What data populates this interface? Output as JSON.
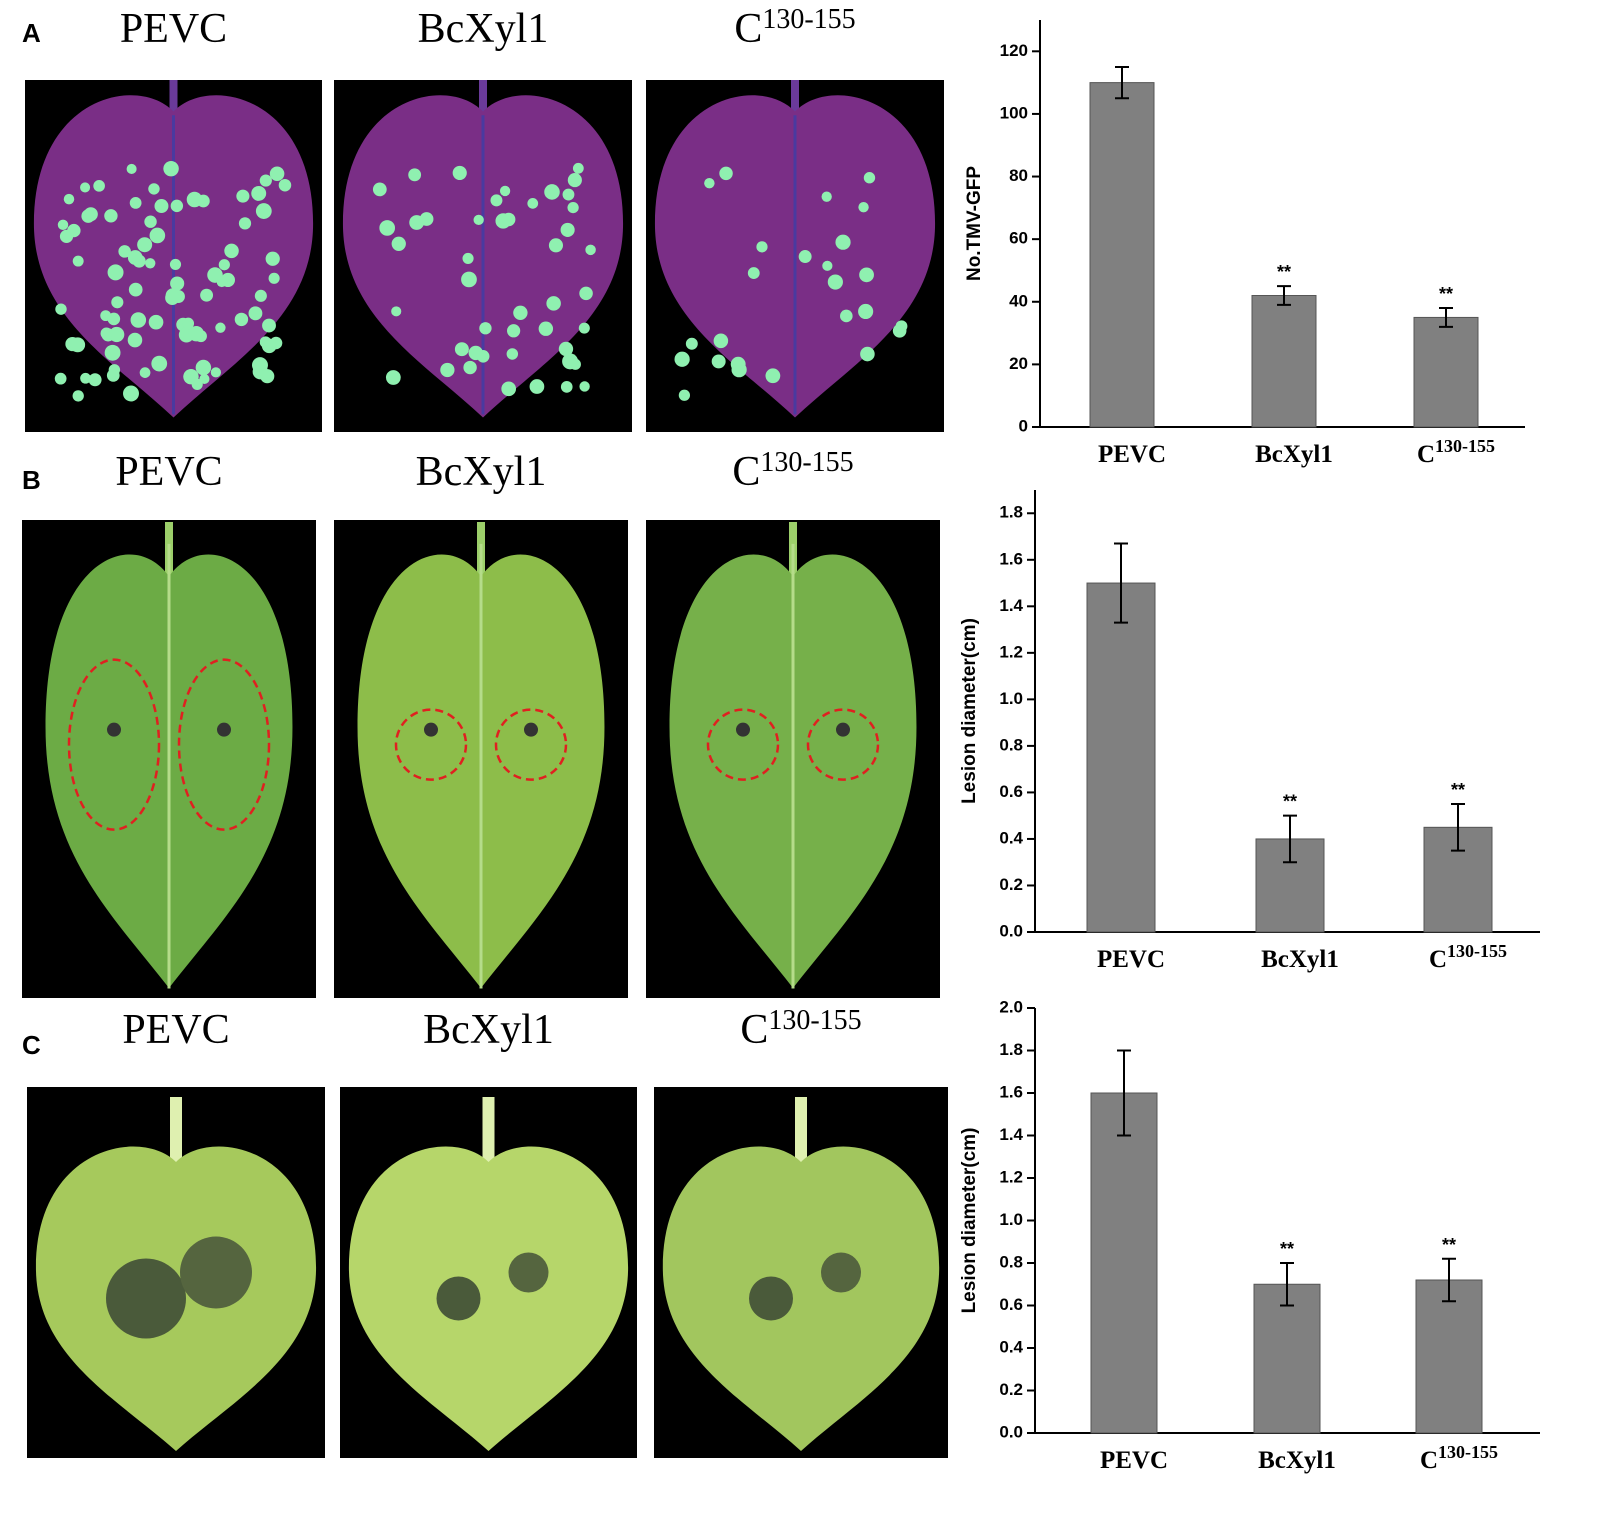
{
  "panels": [
    {
      "label": "A",
      "titles": [
        {
          "text": "PEVC"
        },
        {
          "text": "BcXyl1"
        },
        {
          "text": "C",
          "sup": "130-155"
        }
      ]
    },
    {
      "label": "B",
      "titles": [
        {
          "text": "PEVC"
        },
        {
          "text": "BcXyl1"
        },
        {
          "text": "C",
          "sup": "130-155"
        }
      ]
    },
    {
      "label": "C",
      "titles": [
        {
          "text": "PEVC"
        },
        {
          "text": "BcXyl1"
        },
        {
          "text": "C",
          "sup": "130-155"
        }
      ]
    }
  ],
  "chart_data": [
    {
      "type": "bar",
      "y_label": "No.TMV-GFP",
      "categories": [
        "PEVC",
        "BcXyl1",
        "C"
      ],
      "category_superscripts": [
        null,
        null,
        "130-155"
      ],
      "series": [
        {
          "color": "#808080",
          "values": [
            110,
            42,
            35
          ],
          "errors": [
            5,
            3,
            3
          ]
        }
      ],
      "annotations": [
        null,
        "**",
        "**"
      ],
      "ylim": [
        0,
        130
      ],
      "yticks": [
        0,
        20,
        40,
        60,
        80,
        100,
        120
      ]
    },
    {
      "type": "bar",
      "y_label": "Lesion diameter(cm)",
      "categories": [
        "PEVC",
        "BcXyl1",
        "C"
      ],
      "category_superscripts": [
        null,
        null,
        "130-155"
      ],
      "series": [
        {
          "color": "#808080",
          "values": [
            1.5,
            0.4,
            0.45
          ],
          "errors": [
            0.17,
            0.1,
            0.1
          ]
        }
      ],
      "annotations": [
        null,
        "**",
        "**"
      ],
      "ylim": [
        0,
        1.9
      ],
      "yticks": [
        {
          "value": 0,
          "label": "0.0"
        },
        0.2,
        0.4,
        0.6,
        0.8,
        {
          "value": 1,
          "label": "1.0"
        },
        1.2,
        1.4,
        1.6,
        1.8
      ]
    },
    {
      "type": "bar",
      "y_label": "Lesion diameter(cm)",
      "categories": [
        "PEVC",
        "BcXyl1",
        "C"
      ],
      "category_superscripts": [
        null,
        null,
        "130-155"
      ],
      "series": [
        {
          "color": "#808080",
          "values": [
            1.6,
            0.7,
            0.72
          ],
          "errors": [
            0.2,
            0.1,
            0.1
          ]
        }
      ],
      "annotations": [
        null,
        "**",
        "**"
      ],
      "ylim": [
        0,
        2.0
      ],
      "yticks": [
        {
          "value": 0,
          "label": "0.0"
        },
        0.2,
        0.4,
        0.6,
        0.8,
        {
          "value": 1,
          "label": "1.0"
        },
        1.2,
        1.4,
        1.6,
        1.8,
        {
          "value": 2,
          "label": "2.0"
        }
      ]
    }
  ]
}
